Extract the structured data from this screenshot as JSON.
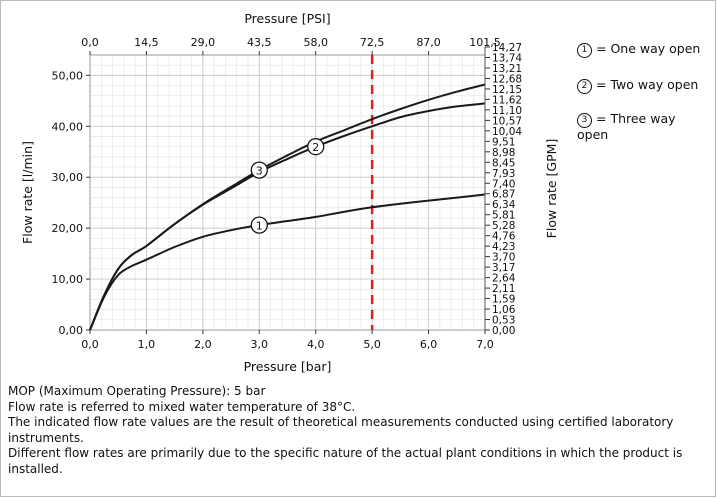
{
  "chart_data": {
    "type": "line",
    "x_bottom": {
      "label": "Pressure [bar]",
      "ticks": [
        "0,0",
        "1,0",
        "2,0",
        "3,0",
        "4,0",
        "5,0",
        "6,0",
        "7,0"
      ],
      "range": [
        0,
        7
      ]
    },
    "x_top": {
      "label": "Pressure [PSI]",
      "ticks": [
        "0,0",
        "14,5",
        "29,0",
        "43,5",
        "58,0",
        "72,5",
        "87,0",
        "101,5"
      ],
      "range": [
        0,
        101.5
      ]
    },
    "y_left": {
      "label": "Flow rate [l/min]",
      "ticks": [
        "0,00",
        "10,00",
        "20,00",
        "30,00",
        "40,00",
        "50,00"
      ],
      "range": [
        0,
        54
      ]
    },
    "y_right": {
      "label": "Flow rate [GPM]",
      "ticks": [
        "0,00",
        "0,53",
        "1,06",
        "1,59",
        "2,11",
        "2,64",
        "3,17",
        "3,70",
        "4,23",
        "4,76",
        "5,28",
        "5,81",
        "6,34",
        "6,87",
        "7,40",
        "7,93",
        "8,45",
        "8,98",
        "9,51",
        "10,04",
        "10,57",
        "11,10",
        "11,62",
        "12,15",
        "12,68",
        "13,21",
        "13,74",
        "14,27"
      ]
    },
    "grid": true,
    "reference_line": {
      "x": 5.0,
      "color": "#e02020",
      "style": "dashed"
    },
    "series": [
      {
        "marker": "1",
        "x": [
          0,
          0.25,
          0.5,
          0.75,
          1.0,
          1.5,
          2.0,
          2.5,
          3.0,
          3.5,
          4.0,
          4.5,
          5.0,
          5.5,
          6.0,
          6.5,
          7.0
        ],
        "y": [
          0,
          6.5,
          10.8,
          12.6,
          13.8,
          16.3,
          18.3,
          19.6,
          20.6,
          21.4,
          22.2,
          23.2,
          24.1,
          24.8,
          25.4,
          26.0,
          26.6
        ]
      },
      {
        "marker": "2",
        "x": [
          0,
          0.25,
          0.5,
          0.75,
          1.0,
          1.5,
          2.0,
          2.5,
          3.0,
          3.5,
          4.0,
          4.5,
          5.0,
          5.5,
          6.0,
          6.5,
          7.0
        ],
        "y": [
          0,
          6.8,
          12.0,
          14.8,
          16.5,
          20.8,
          24.6,
          27.8,
          31.0,
          33.6,
          36.0,
          38.1,
          40.0,
          41.8,
          43.0,
          43.9,
          44.5
        ]
      },
      {
        "marker": "3",
        "x": [
          0,
          0.25,
          0.5,
          0.75,
          1.0,
          1.5,
          2.0,
          2.5,
          3.0,
          3.5,
          4.0,
          4.5,
          5.0,
          5.5,
          6.0,
          6.5,
          7.0
        ],
        "y": [
          0,
          6.8,
          12.0,
          14.8,
          16.5,
          20.8,
          24.7,
          28.1,
          31.4,
          34.3,
          37.0,
          39.2,
          41.4,
          43.4,
          45.2,
          46.8,
          48.2
        ]
      }
    ]
  },
  "legend": [
    {
      "marker": "1",
      "text": "= One way open"
    },
    {
      "marker": "2",
      "text": "= Two way open"
    },
    {
      "marker": "3",
      "text": "= Three way open"
    }
  ],
  "notes": [
    "MOP (Maximum Operating Pressure): 5 bar",
    "Flow rate is referred to mixed water temperature of 38°C.",
    "The indicated flow rate values are the result of theoretical measurements conducted using certified laboratory instruments.",
    "Different flow rates are primarily due to the specific nature of the actual plant conditions in which the product is installed."
  ]
}
